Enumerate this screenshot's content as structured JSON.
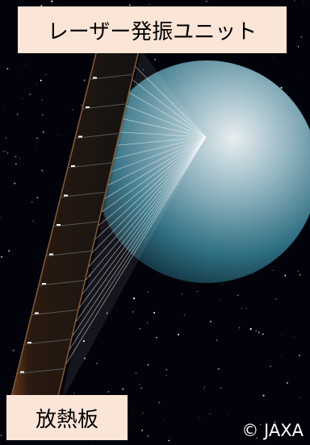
{
  "labels": {
    "top": "レーザー発振ユニット",
    "bottom": "放熱板",
    "credit": "© JAXA"
  }
}
